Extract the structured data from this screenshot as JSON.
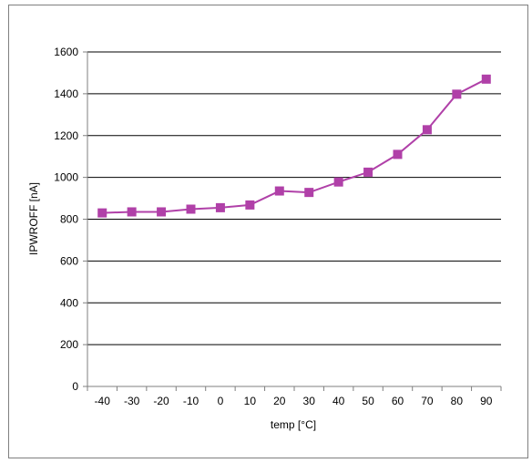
{
  "chart_data": {
    "type": "line",
    "title": "",
    "xlabel": "temp [°C]",
    "ylabel": "IPWROFF [nA]",
    "x": [
      -40,
      -30,
      -20,
      -10,
      0,
      10,
      20,
      30,
      40,
      50,
      60,
      70,
      80,
      90
    ],
    "series": [
      {
        "values": [
          830,
          835,
          835,
          848,
          855,
          868,
          935,
          928,
          978,
          1025,
          1110,
          1228,
          1398,
          1470
        ],
        "color": "#b040a8",
        "marker": "square"
      }
    ],
    "ylim": [
      0,
      1600
    ],
    "yticks": [
      0,
      200,
      400,
      600,
      800,
      1000,
      1200,
      1400,
      1600
    ],
    "xtick_labels": [
      "-40",
      "-30",
      "-20",
      "-10",
      "0",
      "10",
      "20",
      "30",
      "40",
      "50",
      "60",
      "70",
      "80",
      "90"
    ],
    "grid": "horizontal",
    "legend": "none",
    "colors": {
      "gridline": "#000000",
      "axis": "#7f7f7f",
      "series": "#b040a8"
    }
  }
}
